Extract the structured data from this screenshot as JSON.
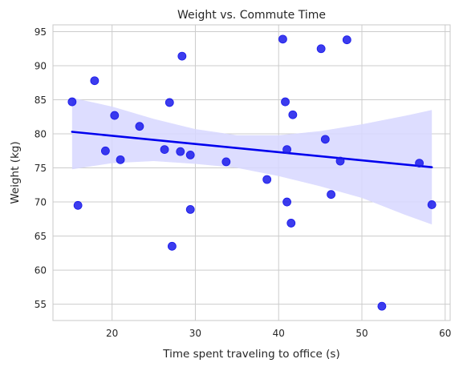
{
  "chart_data": {
    "type": "scatter",
    "title": "Weight vs. Commute Time",
    "xlabel": "Time spent traveling to office (s)",
    "ylabel": "Weight (kg)",
    "xlim": [
      12.9,
      60.6
    ],
    "ylim": [
      52.6,
      96.0
    ],
    "xticks": [
      20,
      30,
      40,
      50,
      60
    ],
    "yticks": [
      55,
      60,
      65,
      70,
      75,
      80,
      85,
      90,
      95
    ],
    "grid": true,
    "colors": {
      "points": "#1a1aeb",
      "line": "#0000ee",
      "band": "#d7d7ff",
      "grid": "#cccccc",
      "frame": "#c8c8c8"
    },
    "points": [
      {
        "x": 15.2,
        "y": 84.7
      },
      {
        "x": 15.9,
        "y": 69.5
      },
      {
        "x": 17.9,
        "y": 87.8
      },
      {
        "x": 19.2,
        "y": 77.5
      },
      {
        "x": 20.3,
        "y": 82.7
      },
      {
        "x": 21.0,
        "y": 76.2
      },
      {
        "x": 23.3,
        "y": 81.1
      },
      {
        "x": 26.3,
        "y": 77.7
      },
      {
        "x": 26.9,
        "y": 84.6
      },
      {
        "x": 27.2,
        "y": 63.5
      },
      {
        "x": 28.2,
        "y": 77.4
      },
      {
        "x": 28.4,
        "y": 91.4
      },
      {
        "x": 29.4,
        "y": 76.9
      },
      {
        "x": 29.4,
        "y": 68.9
      },
      {
        "x": 33.7,
        "y": 75.9
      },
      {
        "x": 38.6,
        "y": 73.3
      },
      {
        "x": 40.5,
        "y": 93.9
      },
      {
        "x": 40.8,
        "y": 84.7
      },
      {
        "x": 41.0,
        "y": 77.7
      },
      {
        "x": 41.0,
        "y": 70.0
      },
      {
        "x": 41.5,
        "y": 66.9
      },
      {
        "x": 41.7,
        "y": 82.8
      },
      {
        "x": 45.1,
        "y": 92.5
      },
      {
        "x": 45.6,
        "y": 79.2
      },
      {
        "x": 46.3,
        "y": 71.1
      },
      {
        "x": 47.4,
        "y": 76.0
      },
      {
        "x": 48.2,
        "y": 93.8
      },
      {
        "x": 52.4,
        "y": 54.7
      },
      {
        "x": 56.9,
        "y": 75.7
      },
      {
        "x": 58.4,
        "y": 69.6
      }
    ],
    "regression_line": {
      "x": [
        15.2,
        58.4
      ],
      "y": [
        80.3,
        75.1
      ]
    },
    "confidence_band": {
      "x": [
        15.2,
        20,
        25,
        30,
        35,
        40,
        45,
        50,
        55,
        58.4
      ],
      "upper": [
        85.3,
        84.0,
        82.2,
        80.7,
        79.8,
        79.8,
        80.4,
        81.4,
        82.6,
        83.5
      ],
      "lower": [
        74.8,
        75.7,
        76.0,
        75.6,
        75.0,
        73.8,
        72.3,
        70.6,
        68.2,
        66.7
      ]
    }
  }
}
